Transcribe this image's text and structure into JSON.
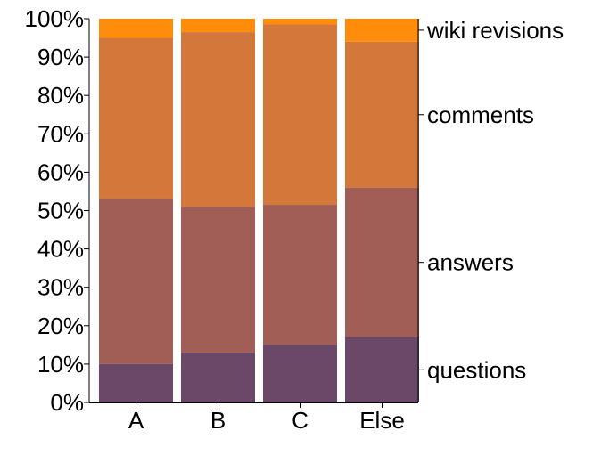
{
  "chart_data": {
    "type": "bar",
    "stacked": true,
    "normalized": true,
    "categories": [
      "A",
      "B",
      "C",
      "Else"
    ],
    "series": [
      {
        "name": "questions",
        "color": "#6b4868",
        "values": [
          10,
          13,
          15,
          17
        ]
      },
      {
        "name": "answers",
        "color": "#a05e57",
        "values": [
          43,
          38,
          36.5,
          39
        ]
      },
      {
        "name": "comments",
        "color": "#d4773b",
        "values": [
          42,
          45.5,
          47,
          38
        ]
      },
      {
        "name": "wiki revisions",
        "color": "#ff8c0a",
        "values": [
          5,
          3.5,
          1.5,
          6
        ]
      }
    ],
    "y_ticks": [
      "0%",
      "10%",
      "20%",
      "30%",
      "40%",
      "50%",
      "60%",
      "70%",
      "80%",
      "90%",
      "100%"
    ],
    "ylim": [
      0,
      100
    ],
    "grid": false,
    "legend_placement": "right, labels at series midpoints of last bar",
    "title": "",
    "xlabel": "",
    "ylabel": ""
  }
}
